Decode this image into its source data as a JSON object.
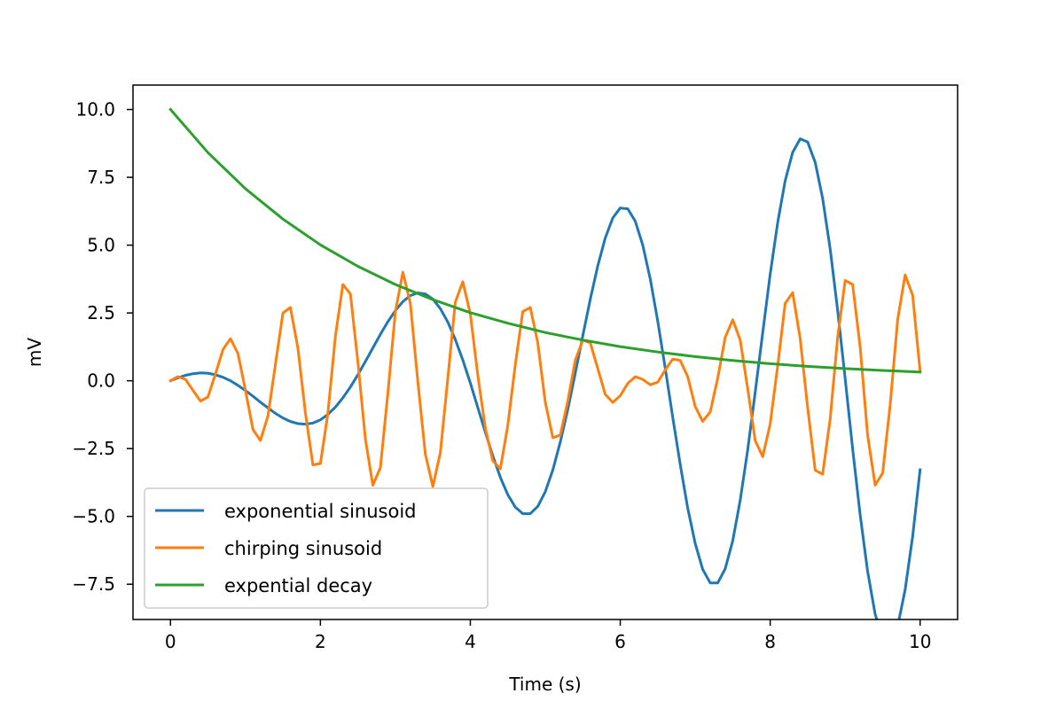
{
  "chart_data": {
    "type": "line",
    "title": "",
    "xlabel": "Time (s)",
    "ylabel": "mV",
    "xlim": [
      -0.5,
      10.5
    ],
    "ylim": [
      -8.8,
      10.9
    ],
    "xticks": [
      {
        "value": 0,
        "label": "0"
      },
      {
        "value": 2,
        "label": "2"
      },
      {
        "value": 4,
        "label": "4"
      },
      {
        "value": 6,
        "label": "6"
      },
      {
        "value": 8,
        "label": "8"
      },
      {
        "value": 10,
        "label": "10"
      }
    ],
    "yticks": [
      {
        "value": -7.5,
        "label": "−7.5"
      },
      {
        "value": -5.0,
        "label": "−5.0"
      },
      {
        "value": -2.5,
        "label": "−2.5"
      },
      {
        "value": 0.0,
        "label": "0.0"
      },
      {
        "value": 2.5,
        "label": "2.5"
      },
      {
        "value": 5.0,
        "label": "5.0"
      },
      {
        "value": 7.5,
        "label": "7.5"
      },
      {
        "value": 10.0,
        "label": "10.0"
      }
    ],
    "grid": false,
    "legend_position": "lower-left",
    "series": [
      {
        "name": "exponential sinusoid",
        "color": "#1f77b4",
        "x": [
          0,
          0.1,
          0.2,
          0.3,
          0.4,
          0.5,
          0.6,
          0.7,
          0.8,
          0.9,
          1,
          1.1,
          1.2,
          1.3,
          1.4,
          1.5,
          1.6,
          1.7,
          1.8,
          1.9,
          2,
          2.1,
          2.2,
          2.3,
          2.4,
          2.5,
          2.6,
          2.7,
          2.8,
          2.9,
          3,
          3.1,
          3.2,
          3.3,
          3.4,
          3.5,
          3.6,
          3.7,
          3.8,
          3.9,
          4,
          4.1,
          4.2,
          4.3,
          4.4,
          4.5,
          4.6,
          4.7,
          4.8,
          4.9,
          5,
          5.1,
          5.2,
          5.3,
          5.4,
          5.5,
          5.6,
          5.7,
          5.8,
          5.9,
          6,
          6.1,
          6.2,
          6.3,
          6.4,
          6.5,
          6.6,
          6.7,
          6.8,
          6.9,
          7,
          7.1,
          7.2,
          7.3,
          7.4,
          7.5,
          7.6,
          7.7,
          7.8,
          7.9,
          8,
          8.1,
          8.2,
          8.3,
          8.4,
          8.5,
          8.6,
          8.7,
          8.8,
          8.9,
          9,
          9.1,
          9.2,
          9.3,
          9.4,
          9.5,
          9.6,
          9.7,
          9.8,
          9.9,
          10
        ],
        "y": [
          0,
          0.11,
          0.2,
          0.26,
          0.29,
          0.28,
          0.22,
          0.13,
          0.0,
          -0.17,
          -0.36,
          -0.57,
          -0.79,
          -1.0,
          -1.2,
          -1.37,
          -1.5,
          -1.58,
          -1.6,
          -1.56,
          -1.44,
          -1.24,
          -0.97,
          -0.63,
          -0.23,
          0.22,
          0.71,
          1.21,
          1.71,
          2.18,
          2.59,
          2.92,
          3.14,
          3.24,
          3.2,
          3.01,
          2.66,
          2.16,
          1.52,
          0.76,
          -0.09,
          -0.99,
          -1.9,
          -2.77,
          -3.56,
          -4.2,
          -4.66,
          -4.9,
          -4.9,
          -4.63,
          -4.09,
          -3.29,
          -2.26,
          -1.05,
          0.28,
          1.66,
          3.0,
          4.24,
          5.26,
          6.0,
          6.37,
          6.34,
          5.88,
          5.0,
          3.75,
          2.2,
          0.46,
          -1.34,
          -3.09,
          -4.69,
          -6.0,
          -6.95,
          -7.45,
          -7.45,
          -6.93,
          -5.9,
          -4.41,
          -2.54,
          -0.43,
          1.77,
          3.92,
          5.83,
          7.37,
          8.42,
          8.92,
          8.8,
          8.05,
          6.72,
          4.86,
          2.6,
          0.08,
          -2.5,
          -4.94,
          -7.02,
          -8.6,
          -9.5,
          -9.66,
          -9.05,
          -7.71,
          -5.74,
          -3.28
        ],
        "y_note_removed": true
      },
      {
        "name": "chirping sinusoid",
        "color": "#ff7f0e",
        "x": [
          0,
          0.1,
          0.2,
          0.3,
          0.4,
          0.5,
          0.6,
          0.7,
          0.8,
          0.9,
          1,
          1.1,
          1.2,
          1.3,
          1.4,
          1.5,
          1.6,
          1.7,
          1.8,
          1.9,
          2,
          2.1,
          2.2,
          2.3,
          2.4,
          2.5,
          2.6,
          2.7,
          2.8,
          2.9,
          3,
          3.1,
          3.2,
          3.3,
          3.4,
          3.5,
          3.6,
          3.7,
          3.8,
          3.9,
          4,
          4.1,
          4.2,
          4.3,
          4.4,
          4.5,
          4.6,
          4.7,
          4.8,
          4.9,
          5,
          5.1,
          5.2,
          5.3,
          5.4,
          5.5,
          5.6,
          5.7,
          5.8,
          5.9,
          6,
          6.1,
          6.2,
          6.3,
          6.4,
          6.5,
          6.6,
          6.7,
          6.8,
          6.9,
          7,
          7.1,
          7.2,
          7.3,
          7.4,
          7.5,
          7.6,
          7.7,
          7.8,
          7.9,
          8,
          8.1,
          8.2,
          8.3,
          8.4,
          8.5,
          8.6,
          8.7,
          8.8,
          8.9,
          9,
          9.1,
          9.2,
          9.3,
          9.4,
          9.5,
          9.6,
          9.7,
          9.8,
          9.9,
          10
        ],
        "y": [
          0,
          0.15,
          0.05,
          -0.35,
          -0.75,
          -0.6,
          0.25,
          1.15,
          1.55,
          1.0,
          -0.35,
          -1.8,
          -2.2,
          -1.3,
          0.6,
          2.5,
          2.7,
          1.2,
          -1.2,
          -3.1,
          -3.05,
          -1.2,
          1.65,
          3.55,
          3.2,
          0.7,
          -2.15,
          -3.85,
          -3.2,
          -0.45,
          2.55,
          4.0,
          2.85,
          -0.05,
          -2.7,
          -3.9,
          -2.65,
          0.1,
          2.9,
          3.65,
          2.45,
          0.2,
          -1.75,
          -2.95,
          -3.25,
          -1.65,
          0.6,
          2.55,
          2.7,
          1.4,
          -0.8,
          -2.1,
          -2.0,
          -0.75,
          0.75,
          1.5,
          1.4,
          0.45,
          -0.5,
          -0.8,
          -0.55,
          -0.1,
          0.15,
          0.05,
          -0.15,
          -0.05,
          0.4,
          0.8,
          0.75,
          0.15,
          -0.95,
          -1.5,
          -1.15,
          0.1,
          1.6,
          2.25,
          1.5,
          -0.3,
          -2.2,
          -2.8,
          -1.6,
          0.55,
          2.85,
          3.25,
          1.55,
          -1.0,
          -3.3,
          -3.45,
          -1.4,
          1.6,
          3.7,
          3.55,
          1.25,
          -2.0,
          -3.85,
          -3.4,
          -0.9,
          2.25,
          3.9,
          3.15,
          0.35
        ]
      },
      {
        "name": "expential decay",
        "color": "#2ca02c",
        "x": [
          0,
          0.5,
          1,
          1.5,
          2,
          2.5,
          3,
          3.5,
          4,
          4.5,
          5,
          5.5,
          6,
          6.5,
          7,
          7.5,
          8,
          8.5,
          9,
          9.5,
          10
        ],
        "y": [
          10.0,
          8.41,
          7.08,
          5.96,
          5.01,
          4.22,
          3.55,
          2.99,
          2.51,
          2.12,
          1.78,
          1.5,
          1.26,
          1.06,
          0.89,
          0.75,
          0.63,
          0.53,
          0.45,
          0.38,
          0.32
        ]
      }
    ]
  }
}
